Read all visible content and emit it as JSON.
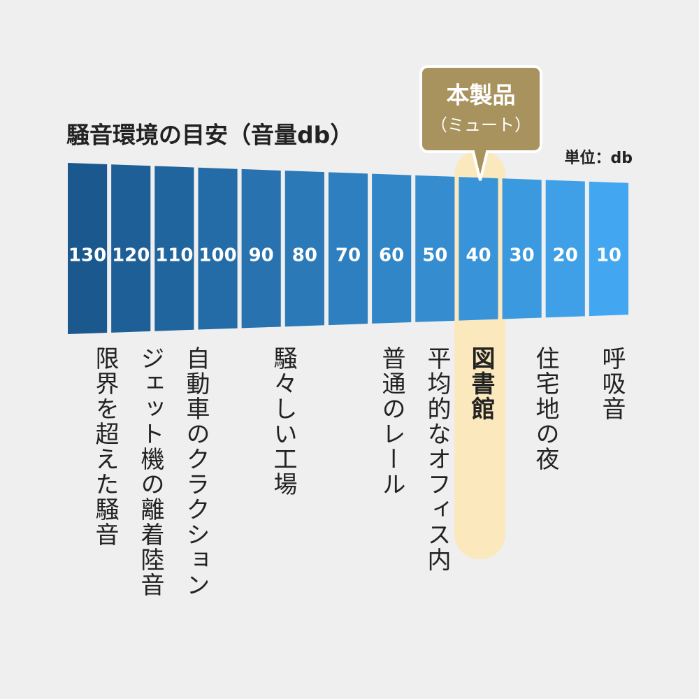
{
  "header": {
    "title": "騒音環境の目安（音量db）",
    "unit": "単位：db"
  },
  "badge": {
    "title": "本製品",
    "subtitle": "（ミュート）"
  },
  "highlight_index": 9,
  "levels": [
    {
      "value": 130,
      "label": "限界を超えた騒音"
    },
    {
      "value": 120,
      "label": "ジェット機の離着陸音"
    },
    {
      "value": 110,
      "label": "自動車のクラクション"
    },
    {
      "value": 100
    },
    {
      "value": 90,
      "label": "騒々しい工場"
    },
    {
      "value": 80
    },
    {
      "value": 70
    },
    {
      "value": 60,
      "label": "普通のレール"
    },
    {
      "value": 50,
      "label": "平均的なオフィス内"
    },
    {
      "value": 40,
      "label": "図書館"
    },
    {
      "value": 30,
      "label": "住宅地の夜"
    },
    {
      "value": 20
    },
    {
      "value": 10,
      "label": "呼吸音"
    }
  ]
}
